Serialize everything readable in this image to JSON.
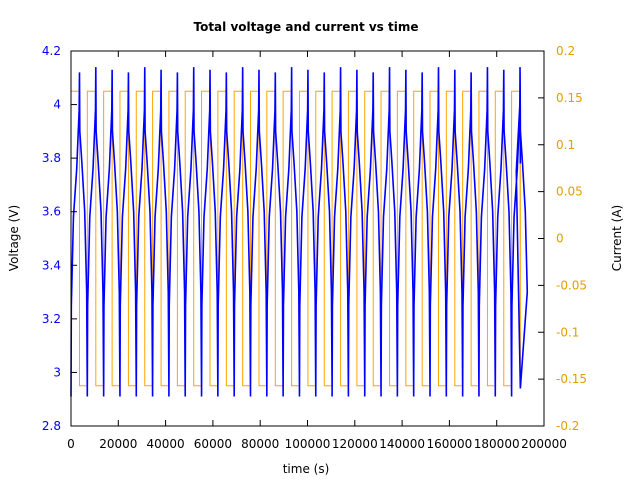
{
  "chart_data": {
    "type": "line",
    "title": "Total voltage and current vs time",
    "xlabel": "time (s)",
    "ylabel": "Voltage (V)",
    "y2label": "Current (A)",
    "xlim": [
      0,
      200000
    ],
    "ylim": [
      2.8,
      4.2
    ],
    "y2lim": [
      -0.2,
      0.2
    ],
    "x_ticks": [
      "0",
      "20000",
      "40000",
      "60000",
      "80000",
      "100000",
      "120000",
      "140000",
      "160000",
      "180000",
      "200000"
    ],
    "y_ticks": [
      "2.8",
      "3",
      "3.2",
      "3.4",
      "3.6",
      "3.8",
      "4",
      "4.2"
    ],
    "y2_ticks": [
      "-0.2",
      "-0.15",
      "-0.1",
      "-0.05",
      "0",
      "0.05",
      "0.1",
      "0.15",
      "0.2"
    ],
    "grid": false,
    "colors": {
      "voltage": "#0000ff",
      "current": "#ffa500",
      "y_axis": "#0000ff",
      "y2_axis": "#e0a000"
    },
    "series": [
      {
        "axis": "left",
        "cycle_period": 6900,
        "cycles": 28,
        "x_end": 190000,
        "v_min": 2.91,
        "v_max": 4.14,
        "v_end": 3.78
      },
      {
        "axis": "right",
        "cycle_period": 6900,
        "cycles": 28,
        "x_end": 190000,
        "i_high": 0.157,
        "i_low": -0.157
      }
    ]
  }
}
